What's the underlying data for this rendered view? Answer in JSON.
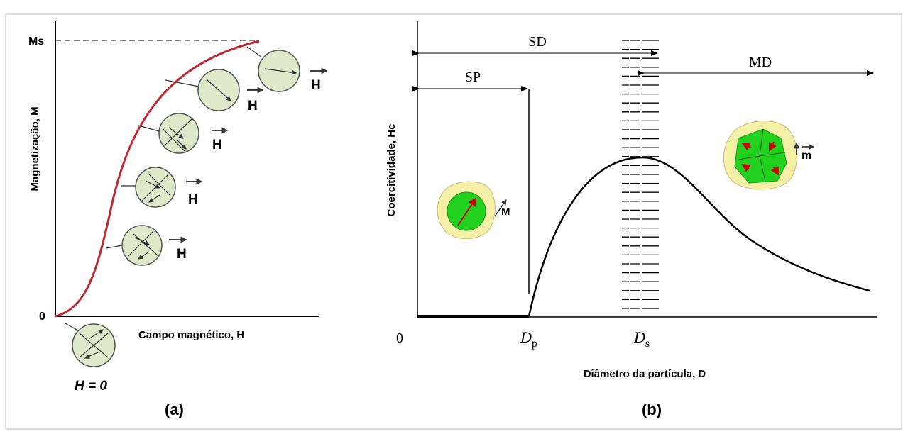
{
  "panel_a": {
    "label": "(a)",
    "y_axis_label": "Magnetização, M",
    "x_axis_label": "Campo magnético, H",
    "saturation_label": "Ms",
    "origin_label": "0",
    "zero_field_label": "H = 0",
    "field_labels": [
      "H",
      "H",
      "H",
      "H",
      "H"
    ]
  },
  "panel_b": {
    "label": "(b)",
    "y_axis_label": "Coercitividade, Hc",
    "x_axis_label": "Diâmetro da partícula, D",
    "origin_label": "0",
    "regions": {
      "sd": "SD",
      "sp": "SP",
      "md": "MD"
    },
    "dp": {
      "symbol": "D",
      "subscript": "p"
    },
    "ds": {
      "symbol": "D",
      "subscript": "s"
    },
    "single_moment_label": "M",
    "multi_moment_label": "m"
  }
}
